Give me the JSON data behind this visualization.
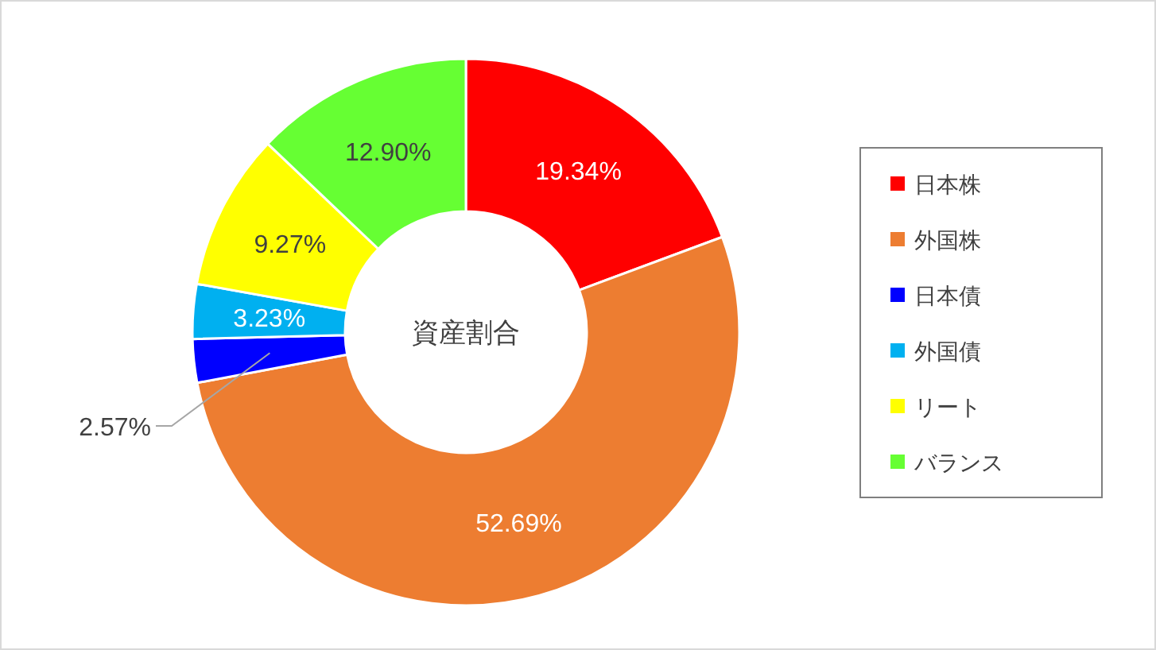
{
  "chart_data": {
    "type": "donut",
    "title": "資産割合",
    "categories": [
      "日本株",
      "外国株",
      "日本債",
      "外国債",
      "リート",
      "バランス"
    ],
    "values": [
      19.34,
      52.69,
      2.57,
      3.23,
      9.27,
      12.9
    ],
    "value_labels": [
      "19.34%",
      "52.69%",
      "2.57%",
      "3.23%",
      "9.27%",
      "12.90%"
    ],
    "colors": [
      "#ff0000",
      "#ed7d31",
      "#0000ff",
      "#00b0f0",
      "#ffff00",
      "#66ff33"
    ],
    "legend": "right"
  }
}
